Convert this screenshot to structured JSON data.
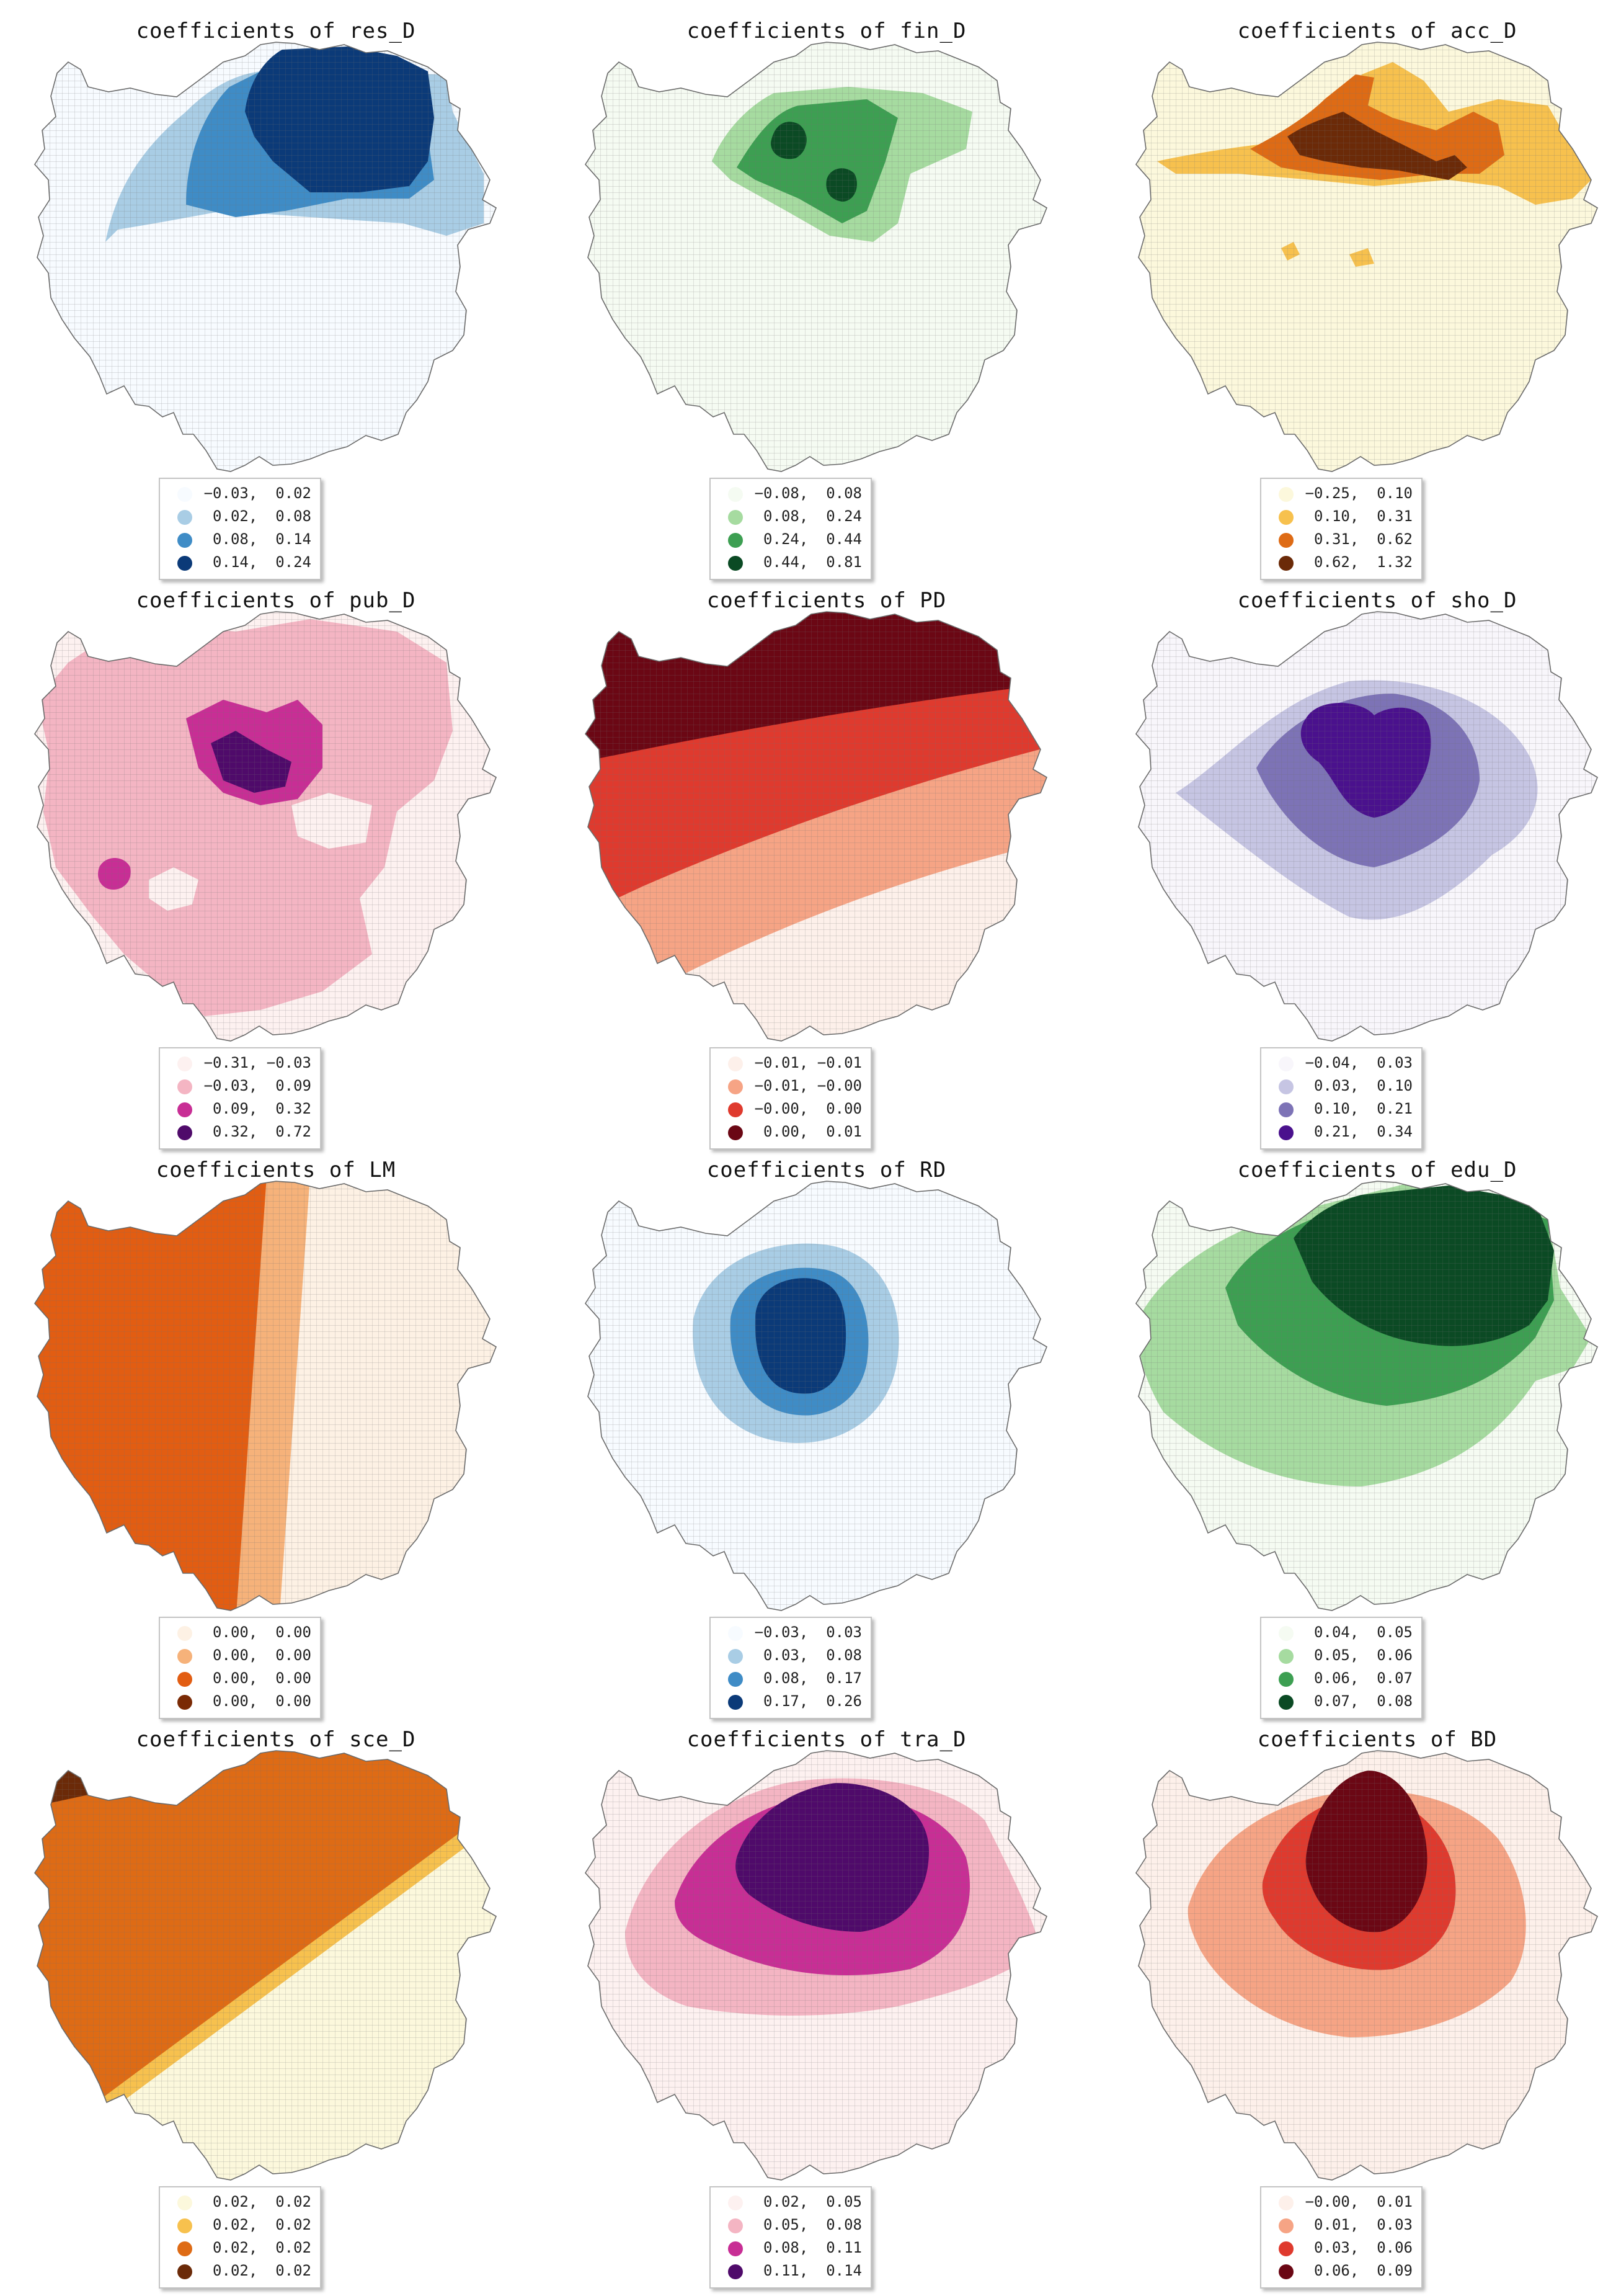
{
  "panels": [
    {
      "title": "coefficients of res_D",
      "palette": "blues",
      "legend": [
        {
          "label": "−0.03,  0.02",
          "color": "#f7fbff"
        },
        {
          "label": "0.02,  0.08",
          "color": "#a9cde5"
        },
        {
          "label": "0.08,  0.14",
          "color": "#3f8cc6"
        },
        {
          "label": "0.14,  0.24",
          "color": "#0b3a78"
        }
      ]
    },
    {
      "title": "coefficients of fin_D",
      "palette": "greens",
      "legend": [
        {
          "label": "−0.08,  0.08",
          "color": "#f5fbf2"
        },
        {
          "label": "0.08,  0.24",
          "color": "#a6dba0"
        },
        {
          "label": "0.24,  0.44",
          "color": "#3d9f52"
        },
        {
          "label": "0.44,  0.81",
          "color": "#0b4a24"
        }
      ]
    },
    {
      "title": "coefficients of acc_D",
      "palette": "oranges",
      "legend": [
        {
          "label": "−0.25,  0.10",
          "color": "#fcf8dc"
        },
        {
          "label": "0.10,  0.31",
          "color": "#f7c14e"
        },
        {
          "label": "0.31,  0.62",
          "color": "#de6b15"
        },
        {
          "label": "0.62,  1.32",
          "color": "#6b2a08"
        }
      ]
    },
    {
      "title": "coefficients of pub_D",
      "palette": "pinks",
      "legend": [
        {
          "label": "−0.31, −0.03",
          "color": "#fdf1f0"
        },
        {
          "label": "−0.03,  0.09",
          "color": "#f4b5c3"
        },
        {
          "label": "0.09,  0.32",
          "color": "#c82e95"
        },
        {
          "label": "0.32,  0.72",
          "color": "#4f0a6a"
        }
      ]
    },
    {
      "title": "coefficients of PD",
      "palette": "reds",
      "legend": [
        {
          "label": "−0.01, −0.01",
          "color": "#fdf0ea"
        },
        {
          "label": "−0.01, −0.00",
          "color": "#f6a485"
        },
        {
          "label": "−0.00,  0.00",
          "color": "#df3a2e"
        },
        {
          "label": "0.00,  0.01",
          "color": "#6b0714"
        }
      ]
    },
    {
      "title": "coefficients of sho_D",
      "palette": "purples",
      "legend": [
        {
          "label": "−0.04,  0.03",
          "color": "#f8f6fb"
        },
        {
          "label": "0.03,  0.10",
          "color": "#c6c5e3"
        },
        {
          "label": "0.10,  0.21",
          "color": "#7d73b6"
        },
        {
          "label": "0.21,  0.34",
          "color": "#4a118d"
        }
      ]
    },
    {
      "title": "coefficients of LM",
      "palette": "lm",
      "legend": [
        {
          "label": "0.00,  0.00",
          "color": "#fdf1e4"
        },
        {
          "label": "0.00,  0.00",
          "color": "#f6b27a"
        },
        {
          "label": "0.00,  0.00",
          "color": "#e25d12"
        },
        {
          "label": "0.00,  0.00",
          "color": "#7a2a05"
        }
      ]
    },
    {
      "title": "coefficients of RD",
      "palette": "blues",
      "legend": [
        {
          "label": "−0.03,  0.03",
          "color": "#f7fbff"
        },
        {
          "label": "0.03,  0.08",
          "color": "#a9cde5"
        },
        {
          "label": "0.08,  0.17",
          "color": "#3f8cc6"
        },
        {
          "label": "0.17,  0.26",
          "color": "#0b3a78"
        }
      ]
    },
    {
      "title": "coefficients of edu_D",
      "palette": "greens",
      "legend": [
        {
          "label": "0.04,  0.05",
          "color": "#f5fbf2"
        },
        {
          "label": "0.05,  0.06",
          "color": "#a6dba0"
        },
        {
          "label": "0.06,  0.07",
          "color": "#3d9f52"
        },
        {
          "label": "0.07,  0.08",
          "color": "#0b4a24"
        }
      ]
    },
    {
      "title": "coefficients of sce_D",
      "palette": "oranges",
      "legend": [
        {
          "label": "0.02,  0.02",
          "color": "#fcf8dc"
        },
        {
          "label": "0.02,  0.02",
          "color": "#f7c14e"
        },
        {
          "label": "0.02,  0.02",
          "color": "#de6b15"
        },
        {
          "label": "0.02,  0.02",
          "color": "#6b2a08"
        }
      ]
    },
    {
      "title": "coefficients of tra_D",
      "palette": "pinks",
      "legend": [
        {
          "label": "0.02,  0.05",
          "color": "#fdf1f0"
        },
        {
          "label": "0.05,  0.08",
          "color": "#f4b5c3"
        },
        {
          "label": "0.08,  0.11",
          "color": "#c82e95"
        },
        {
          "label": "0.11,  0.14",
          "color": "#4f0a6a"
        }
      ]
    },
    {
      "title": "coefficients of BD",
      "palette": "reds",
      "legend": [
        {
          "label": "−0.00,  0.01",
          "color": "#fdf0ea"
        },
        {
          "label": "0.01,  0.03",
          "color": "#f6a485"
        },
        {
          "label": "0.03,  0.06",
          "color": "#df3a2e"
        },
        {
          "label": "0.06,  0.09",
          "color": "#6b0714"
        }
      ]
    }
  ]
}
